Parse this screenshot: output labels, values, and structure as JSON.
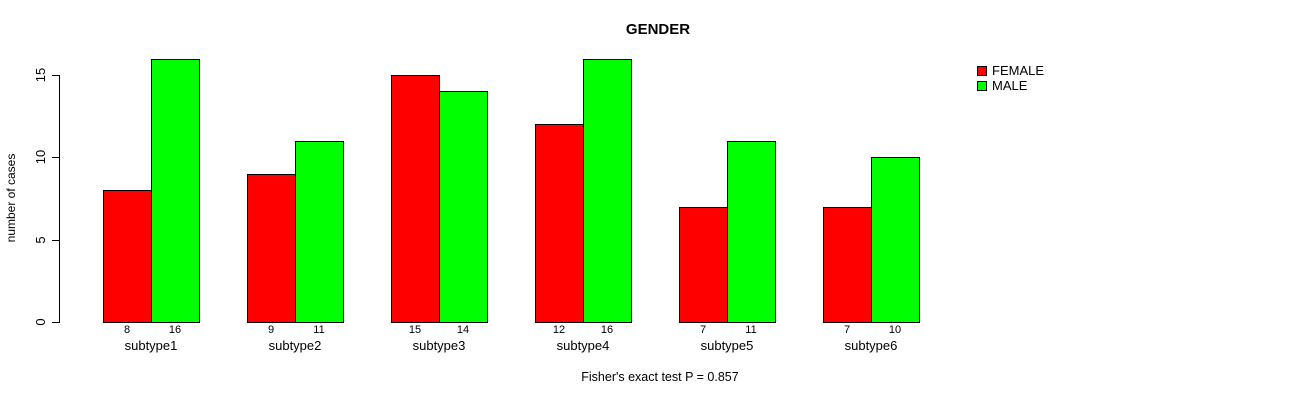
{
  "chart_data": {
    "type": "bar",
    "title": "GENDER",
    "xlabel": "",
    "ylabel": "number of cases",
    "categories": [
      "subtype1",
      "subtype2",
      "subtype3",
      "subtype4",
      "subtype5",
      "subtype6"
    ],
    "series": [
      {
        "name": "FEMALE",
        "color": "#ff0000",
        "values": [
          8,
          9,
          15,
          12,
          7,
          7
        ]
      },
      {
        "name": "MALE",
        "color": "#00ff00",
        "values": [
          16,
          11,
          14,
          16,
          11,
          10
        ]
      }
    ],
    "yticks": [
      0,
      5,
      10,
      15
    ],
    "ylim": [
      0,
      16.6
    ],
    "grid": false,
    "bar_value_labels": true,
    "legend_position": "top-right",
    "annotation": "Fisher's exact test P = 0.857"
  },
  "colors": {
    "axis": "#000000",
    "background": "#ffffff",
    "female": "#ff0000",
    "male": "#00ff00"
  }
}
